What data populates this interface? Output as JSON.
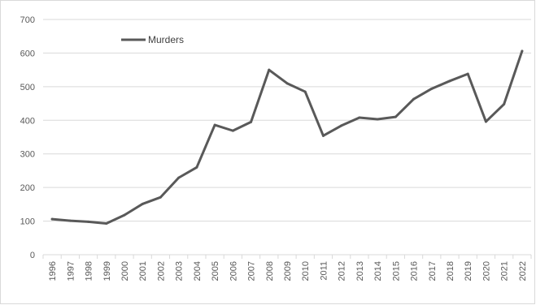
{
  "chart_data": {
    "type": "line",
    "title": "",
    "xlabel": "",
    "ylabel": "",
    "categories": [
      "1996",
      "1997",
      "1998",
      "1999",
      "2000",
      "2001",
      "2002",
      "2003",
      "2004",
      "2005",
      "2006",
      "2007",
      "2008",
      "2009",
      "2010",
      "2011",
      "2012",
      "2013",
      "2014",
      "2015",
      "2016",
      "2017",
      "2018",
      "2019",
      "2020",
      "2021",
      "2022"
    ],
    "series": [
      {
        "name": "Murders",
        "color": "#595959",
        "values": [
          106,
          101,
          98,
          93,
          118,
          151,
          171,
          229,
          260,
          386,
          369,
          395,
          550,
          510,
          485,
          354,
          384,
          408,
          403,
          410,
          463,
          494,
          517,
          538,
          396,
          448,
          606
        ]
      }
    ],
    "ylim": [
      0,
      700
    ],
    "yticks": [
      0,
      100,
      200,
      300,
      400,
      500,
      600,
      700
    ],
    "grid": true,
    "legend_position": "top-left"
  }
}
